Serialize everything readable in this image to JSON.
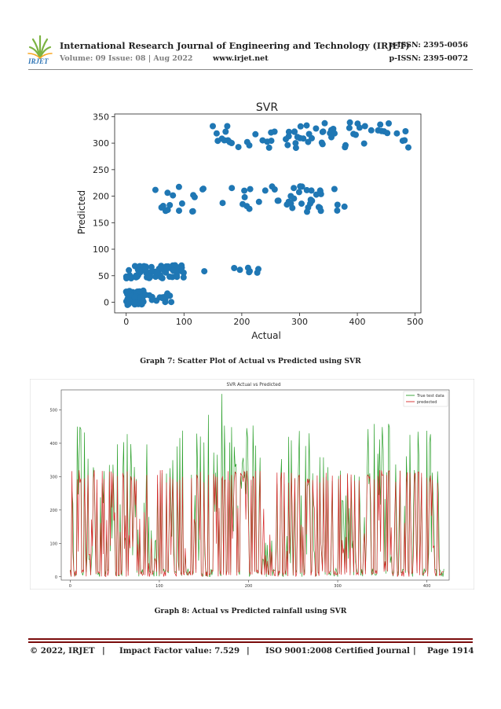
{
  "header": {
    "logo_text": "IRJET",
    "journal_title": "International Research Journal of Engineering and Technology (IRJET)",
    "eissn": "e-ISSN: 2395-0056",
    "volume": "Volume: 09 Issue: 08 | Aug 2022",
    "website": "www.irjet.net",
    "pissn": "p-ISSN: 2395-0072"
  },
  "figures": {
    "graph7_caption": "Graph 7: Scatter Plot of Actual vs Predicted using SVR",
    "graph8_caption": "Graph 8: Actual vs Predicted rainfall using SVR"
  },
  "chart_data": [
    {
      "type": "scatter",
      "title": "SVR",
      "xlabel": "Actual",
      "ylabel": "Predicted",
      "xlim": [
        -20,
        510
      ],
      "ylim": [
        -20,
        355
      ],
      "xticks": [
        0,
        100,
        200,
        300,
        400,
        500
      ],
      "yticks": [
        0,
        50,
        100,
        150,
        200,
        250,
        300,
        350
      ],
      "marker_color": "#1f77b4",
      "clusters": [
        {
          "x_range": [
            0,
            30
          ],
          "y_range": [
            -5,
            22
          ],
          "count": 90
        },
        {
          "x_range": [
            30,
            80
          ],
          "y_range": [
            0,
            18
          ],
          "count": 14
        },
        {
          "x_range": [
            0,
            100
          ],
          "y_range": [
            45,
            70
          ],
          "count": 70
        },
        {
          "x_range": [
            100,
            240
          ],
          "y_range": [
            55,
            70
          ],
          "count": 8
        },
        {
          "x_range": [
            50,
            380
          ],
          "y_range": [
            170,
            220
          ],
          "count": 60
        },
        {
          "x_range": [
            140,
            490
          ],
          "y_range": [
            290,
            340
          ],
          "count": 70
        }
      ]
    },
    {
      "type": "line",
      "title": "SVR Actual vs Predicted",
      "xlim": [
        -10,
        425
      ],
      "ylim": [
        -10,
        560
      ],
      "xticks": [
        0,
        100,
        200,
        300,
        400
      ],
      "yticks": [
        0,
        100,
        200,
        300,
        400,
        500
      ],
      "series": [
        {
          "name": "True test data",
          "color": "#2ca02c",
          "n_points": 420,
          "value_range": [
            0,
            550
          ]
        },
        {
          "name": "predected",
          "color": "#d62728",
          "n_points": 420,
          "value_range": [
            0,
            330
          ]
        }
      ],
      "legend": "top-right"
    }
  ],
  "footer": {
    "copyright": "© 2022, IRJET",
    "sep": "|",
    "impact": "Impact Factor value: 7.529",
    "iso": "ISO 9001:2008 Certified Journal",
    "page": "Page 1914"
  }
}
